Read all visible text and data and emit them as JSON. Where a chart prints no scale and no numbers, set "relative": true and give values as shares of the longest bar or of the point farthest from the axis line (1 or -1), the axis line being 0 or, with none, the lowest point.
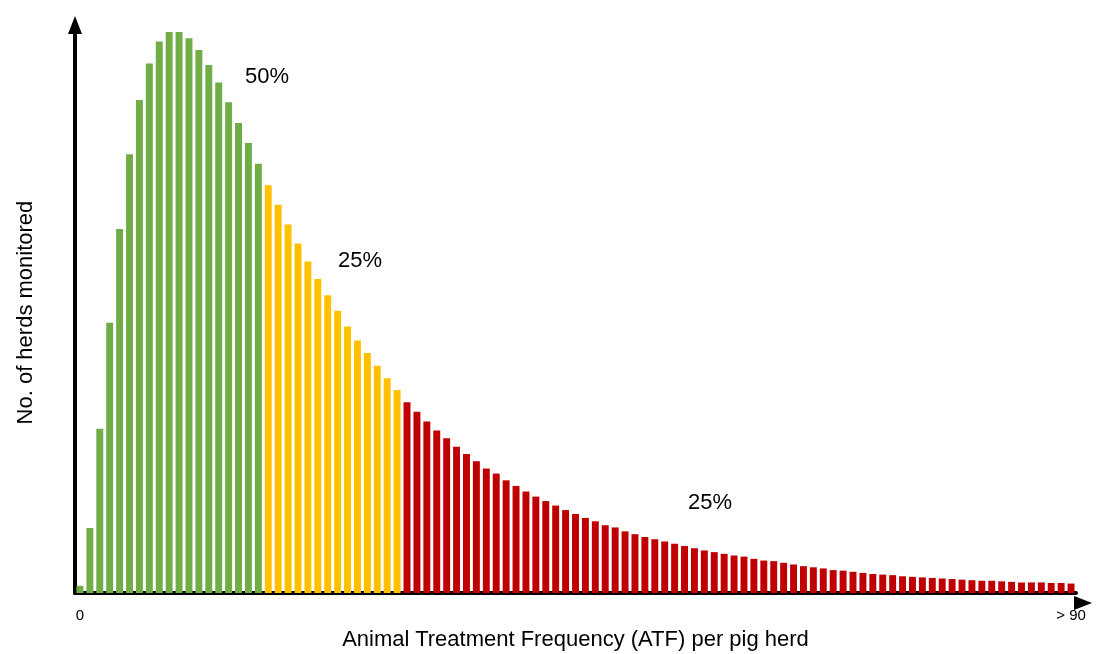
{
  "chart_data": {
    "type": "bar",
    "relative": true,
    "xlabel": "Animal Treatment Frequency (ATF) per pig herd",
    "ylabel": "No. of herds monitored",
    "annotations": [
      "50%",
      "25%",
      "25%"
    ],
    "categories": [
      "0",
      null,
      null,
      null,
      null,
      null,
      null,
      null,
      null,
      null,
      null,
      null,
      null,
      null,
      null,
      null,
      null,
      null,
      null,
      null,
      null,
      null,
      null,
      null,
      null,
      null,
      null,
      null,
      null,
      null,
      null,
      null,
      null,
      null,
      null,
      null,
      null,
      null,
      null,
      null,
      null,
      null,
      null,
      null,
      null,
      null,
      null,
      null,
      null,
      null,
      null,
      null,
      null,
      null,
      null,
      null,
      null,
      null,
      null,
      null,
      null,
      null,
      null,
      null,
      null,
      null,
      null,
      null,
      null,
      null,
      null,
      null,
      null,
      null,
      null,
      null,
      null,
      null,
      null,
      null,
      null,
      null,
      null,
      null,
      null,
      null,
      null,
      null,
      null,
      null,
      null,
      null,
      null,
      null,
      null,
      null,
      null,
      null,
      null,
      null,
      "> 90"
    ],
    "values": [
      0.013,
      0.116,
      0.293,
      0.482,
      0.649,
      0.782,
      0.879,
      0.944,
      0.983,
      1.0,
      1.0,
      0.989,
      0.968,
      0.941,
      0.91,
      0.875,
      0.838,
      0.802,
      0.765,
      0.727,
      0.692,
      0.657,
      0.623,
      0.591,
      0.56,
      0.531,
      0.503,
      0.475,
      0.45,
      0.428,
      0.405,
      0.383,
      0.362,
      0.34,
      0.323,
      0.306,
      0.29,
      0.276,
      0.261,
      0.248,
      0.235,
      0.222,
      0.213,
      0.201,
      0.191,
      0.181,
      0.172,
      0.164,
      0.156,
      0.148,
      0.141,
      0.134,
      0.128,
      0.121,
      0.117,
      0.11,
      0.105,
      0.1,
      0.096,
      0.092,
      0.088,
      0.084,
      0.08,
      0.076,
      0.073,
      0.07,
      0.067,
      0.065,
      0.061,
      0.058,
      0.057,
      0.054,
      0.051,
      0.048,
      0.046,
      0.044,
      0.041,
      0.04,
      0.038,
      0.036,
      0.034,
      0.033,
      0.032,
      0.03,
      0.029,
      0.028,
      0.027,
      0.026,
      0.025,
      0.024,
      0.023,
      0.022,
      0.022,
      0.021,
      0.02,
      0.019,
      0.019,
      0.019,
      0.018,
      0.018,
      0.017
    ],
    "colors": [
      "#70ad47",
      "#70ad47",
      "#70ad47",
      "#70ad47",
      "#70ad47",
      "#70ad47",
      "#70ad47",
      "#70ad47",
      "#70ad47",
      "#70ad47",
      "#70ad47",
      "#70ad47",
      "#70ad47",
      "#70ad47",
      "#70ad47",
      "#70ad47",
      "#70ad47",
      "#70ad47",
      "#70ad47",
      "#ffc000",
      "#ffc000",
      "#ffc000",
      "#ffc000",
      "#ffc000",
      "#ffc000",
      "#ffc000",
      "#ffc000",
      "#ffc000",
      "#ffc000",
      "#ffc000",
      "#ffc000",
      "#ffc000",
      "#ffc000",
      "#c00000",
      "#c00000",
      "#c00000",
      "#c00000",
      "#c00000",
      "#c00000",
      "#c00000",
      "#c00000",
      "#c00000",
      "#c00000",
      "#c00000",
      "#c00000",
      "#c00000",
      "#c00000",
      "#c00000",
      "#c00000",
      "#c00000",
      "#c00000",
      "#c00000",
      "#c00000",
      "#c00000",
      "#c00000",
      "#c00000",
      "#c00000",
      "#c00000",
      "#c00000",
      "#c00000",
      "#c00000",
      "#c00000",
      "#c00000",
      "#c00000",
      "#c00000",
      "#c00000",
      "#c00000",
      "#c00000",
      "#c00000",
      "#c00000",
      "#c00000",
      "#c00000",
      "#c00000",
      "#c00000",
      "#c00000",
      "#c00000",
      "#c00000",
      "#c00000",
      "#c00000",
      "#c00000",
      "#c00000",
      "#c00000",
      "#c00000",
      "#c00000",
      "#c00000",
      "#c00000",
      "#c00000",
      "#c00000",
      "#c00000",
      "#c00000",
      "#c00000",
      "#c00000",
      "#c00000",
      "#c00000",
      "#c00000",
      "#c00000",
      "#c00000",
      "#c00000",
      "#c00000",
      "#c00000",
      "#c00000"
    ],
    "grid": false
  }
}
